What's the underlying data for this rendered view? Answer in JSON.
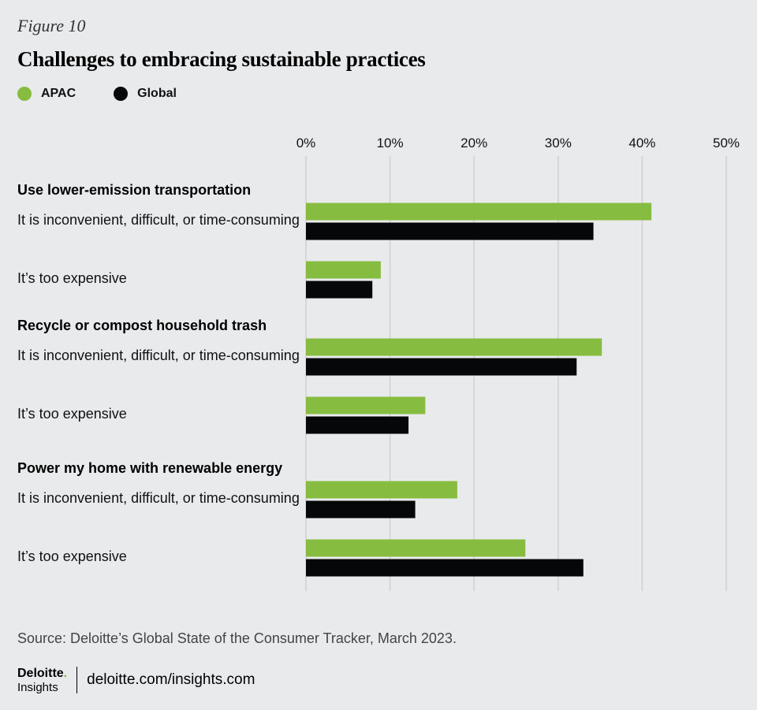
{
  "figure_label": "Figure 10",
  "footer": {
    "brand_name": "Deloitte",
    "brand_dot": ".",
    "brand_sub": "Insights",
    "link": "deloitte.com/insights.com"
  },
  "colors": {
    "apac": "#86bc3f",
    "global": "#050708",
    "grid": "#cfd0d1"
  },
  "chart_data": {
    "type": "bar",
    "orientation": "horizontal",
    "title": "Challenges to embracing sustainable practices",
    "source": "Source: Deloitte’s Global State of the Consumer Tracker, March 2023.",
    "xlim": [
      0,
      50
    ],
    "x_ticks": [
      "0%",
      "10%",
      "20%",
      "30%",
      "40%",
      "50%"
    ],
    "x_tick_values": [
      0,
      10,
      20,
      30,
      40,
      50
    ],
    "legend": [
      "APAC",
      "Global"
    ],
    "groups": [
      {
        "heading": "Use lower-emission transportation",
        "items": [
          {
            "label": "It is inconvenient, difficult, or time-consuming",
            "apac": 41.1,
            "global": 34.2
          },
          {
            "label": "It’s too expensive",
            "apac": 8.9,
            "global": 7.9
          }
        ]
      },
      {
        "heading": "Recycle or compost household trash",
        "items": [
          {
            "label": "It is inconvenient, difficult, or time-consuming",
            "apac": 35.2,
            "global": 32.2
          },
          {
            "label": "It’s too expensive",
            "apac": 14.2,
            "global": 12.2
          }
        ]
      },
      {
        "heading": "Power my home with renewable energy",
        "items": [
          {
            "label": "It is inconvenient, difficult, or time-consuming",
            "apac": 18.0,
            "global": 13.0
          },
          {
            "label": "It’s too expensive",
            "apac": 26.1,
            "global": 33.0
          }
        ]
      }
    ]
  }
}
